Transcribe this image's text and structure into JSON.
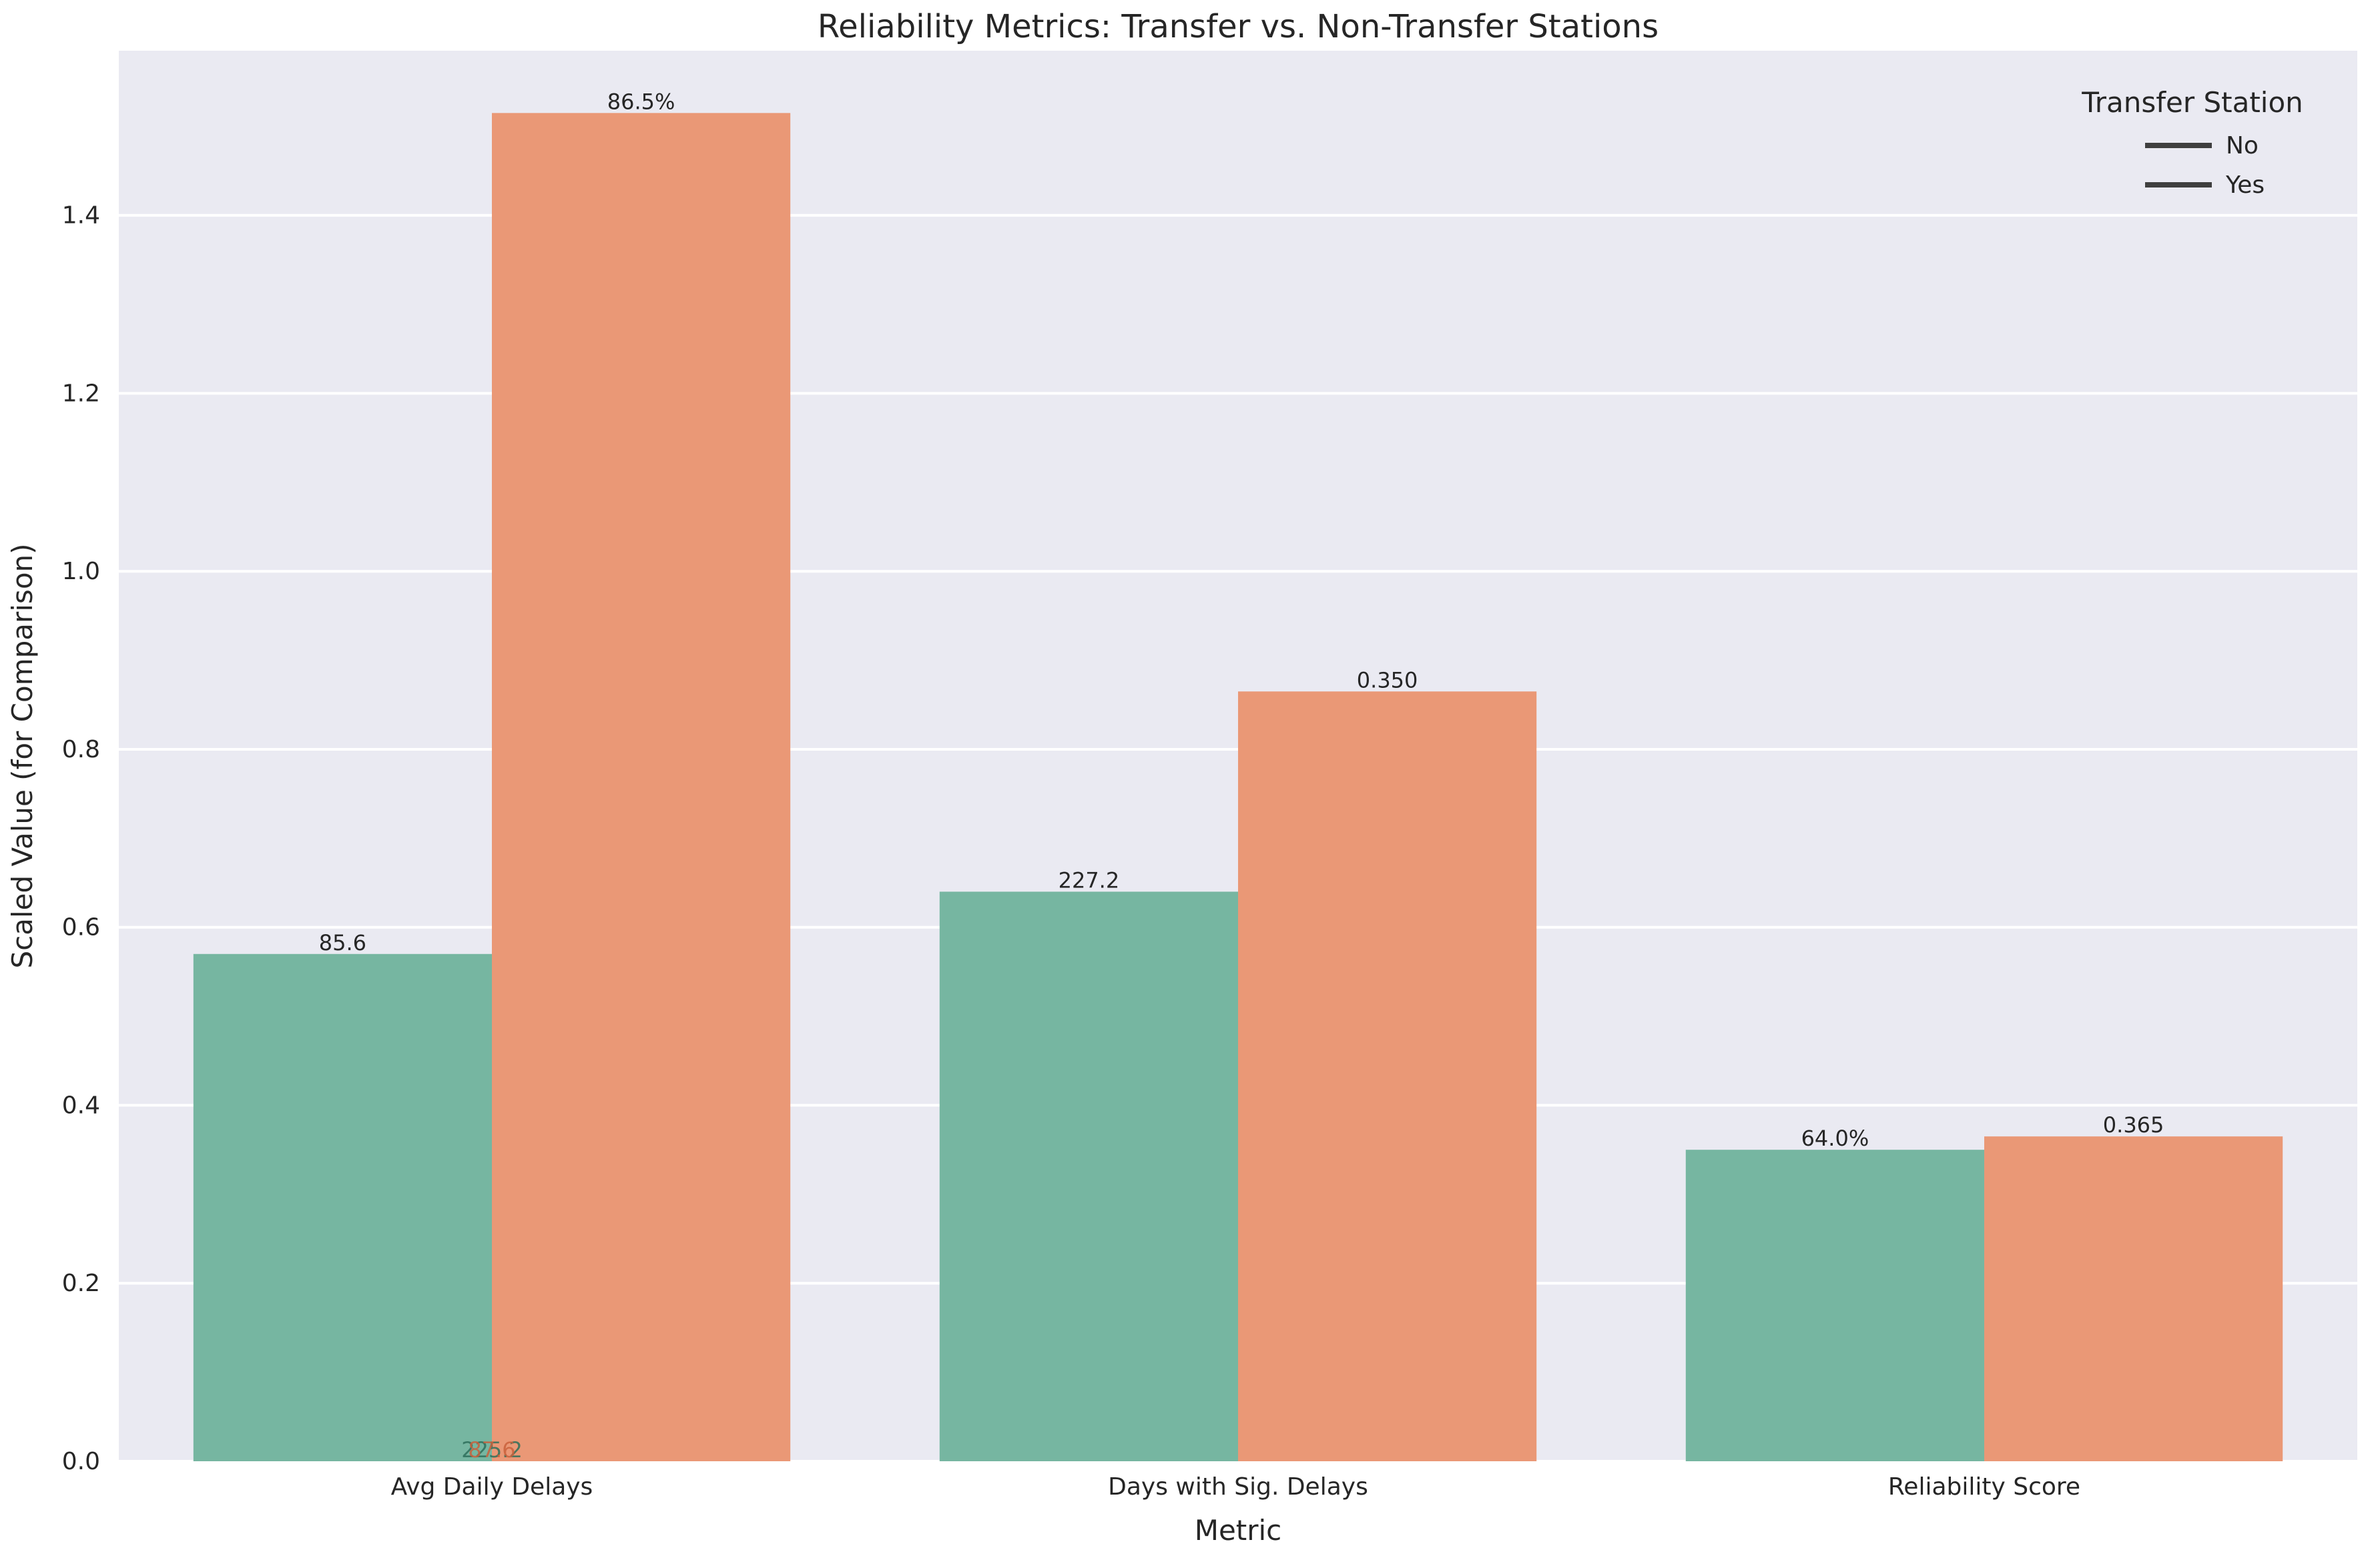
{
  "chart_data": {
    "type": "bar",
    "title": "Reliability Metrics: Transfer vs. Non-Transfer Stations",
    "xlabel": "Metric",
    "ylabel": "Scaled Value (for Comparison)",
    "categories": [
      "Avg Daily Delays",
      "Days with Sig. Delays",
      "Reliability Score"
    ],
    "series": [
      {
        "name": "No",
        "color": "#76b6a1",
        "values": [
          0.57,
          0.64,
          0.35
        ],
        "labels": [
          "85.6",
          "227.2",
          "64.0%"
        ]
      },
      {
        "name": "Yes",
        "color": "#ea9876",
        "values": [
          1.515,
          0.865,
          0.365
        ],
        "labels": [
          "86.5%",
          "0.350",
          "0.365"
        ]
      }
    ],
    "overlap_labels": [
      "225.2",
      "87.6"
    ],
    "overlap_label_colors": [
      "#2e6f5a",
      "#c9603c"
    ],
    "ylim": [
      0,
      1.585
    ],
    "yticks": [
      0.0,
      0.2,
      0.4,
      0.6,
      0.8,
      1.0,
      1.2,
      1.4
    ],
    "ytick_labels": [
      "0.0",
      "0.2",
      "0.4",
      "0.6",
      "0.8",
      "1.0",
      "1.2",
      "1.4"
    ],
    "grid": true,
    "legend": {
      "title": "Transfer Station",
      "placement": "top-right",
      "entries": [
        "No",
        "Yes"
      ],
      "line_color": "#3f3f3f"
    },
    "background_color": "#eaeaf2",
    "text_color": "#262626"
  }
}
